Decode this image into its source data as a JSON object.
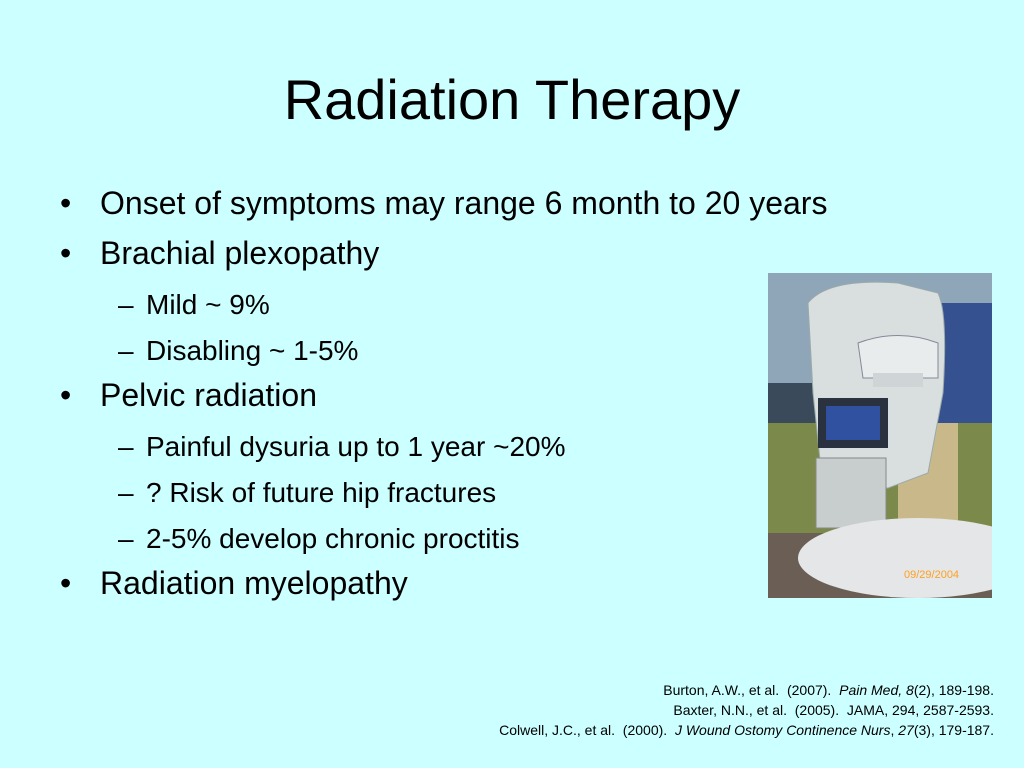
{
  "slide": {
    "title": "Radiation Therapy",
    "bullets": [
      {
        "text": "Onset of symptoms may range 6 month to 20 years",
        "subs": []
      },
      {
        "text": "Brachial plexopathy",
        "subs": [
          "Mild ~ 9%",
          "Disabling ~ 1-5%"
        ]
      },
      {
        "text": "Pelvic radiation",
        "subs": [
          "Painful dysuria up to 1 year ~20%",
          "? Risk of future hip fractures",
          "2-5% develop chronic proctitis"
        ]
      },
      {
        "text": "Radiation myelopathy",
        "subs": []
      }
    ],
    "photo_date_stamp": "09/29/2004",
    "references": [
      [
        {
          "text": "Burton, A.W., et al.  (2007).  ",
          "italic": false
        },
        {
          "text": "Pain Med, 8",
          "italic": true
        },
        {
          "text": "(2), 189-198.",
          "italic": false
        }
      ],
      [
        {
          "text": "Baxter, N.N., et al.  (2005).  JAMA, 294, 2587-2593.",
          "italic": false
        }
      ],
      [
        {
          "text": "Colwell, J.C., et al.  (2000).  ",
          "italic": false
        },
        {
          "text": "J Wound Ostomy Continence Nurs",
          "italic": true
        },
        {
          "text": ", ",
          "italic": false
        },
        {
          "text": "27",
          "italic": true
        },
        {
          "text": "(3), 179-187.",
          "italic": false
        }
      ]
    ]
  }
}
